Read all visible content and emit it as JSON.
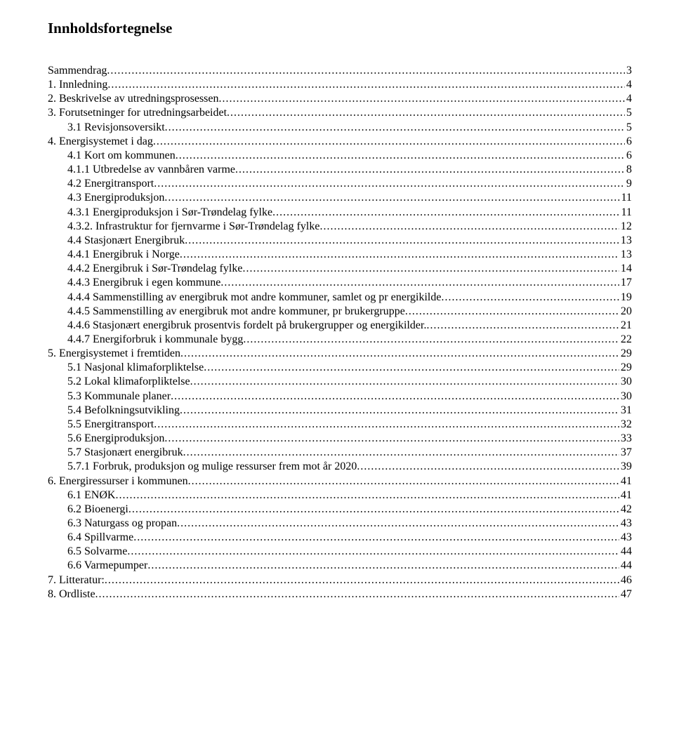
{
  "title": "Innholdsfortegnelse",
  "colors": {
    "text": "#000000",
    "background": "#ffffff"
  },
  "typography": {
    "font_family": "Times New Roman",
    "title_fontsize_pt": 16,
    "title_weight": "bold",
    "entry_fontsize_pt": 12,
    "line_height": 1.26
  },
  "toc_entries": [
    {
      "indent": 0,
      "label": "Sammendrag",
      "page": "3"
    },
    {
      "indent": 0,
      "label": "1.    Innledning",
      "page": "4"
    },
    {
      "indent": 0,
      "label": "2.    Beskrivelse av utredningsprosessen",
      "page": "4"
    },
    {
      "indent": 0,
      "label": "3.    Forutsetninger for utredningsarbeidet",
      "page": "5"
    },
    {
      "indent": 1,
      "label": "3.1    Revisjonsoversikt",
      "page": "5"
    },
    {
      "indent": 0,
      "label": "4.    Energisystemet i dag",
      "page": "6"
    },
    {
      "indent": 1,
      "label": "4.1    Kort om kommunen",
      "page": "6"
    },
    {
      "indent": 2,
      "label": "4.1.1    Utbredelse av vannbåren varme",
      "page": "8"
    },
    {
      "indent": 1,
      "label": "4.2    Energitransport",
      "page": "9"
    },
    {
      "indent": 1,
      "label": "4.3    Energiproduksjon",
      "page": "11"
    },
    {
      "indent": 2,
      "label": "4.3.1    Energiproduksjon i Sør-Trøndelag fylke",
      "page": "11"
    },
    {
      "indent": 2,
      "label": "4.3.2.   Infrastruktur for fjernvarme i Sør-Trøndelag fylke",
      "page": "12"
    },
    {
      "indent": 1,
      "label": "4.4    Stasjonært Energibruk",
      "page": "13"
    },
    {
      "indent": 2,
      "label": "4.4.1    Energibruk i Norge",
      "page": "13"
    },
    {
      "indent": 2,
      "label": "4.4.2    Energibruk i Sør-Trøndelag fylke",
      "page": "14"
    },
    {
      "indent": 2,
      "label": "4.4.3    Energibruk i egen kommune",
      "page": "17"
    },
    {
      "indent": 2,
      "label": "4.4.4    Sammenstilling av energibruk mot andre kommuner, samlet og pr energikilde",
      "page": "19"
    },
    {
      "indent": 2,
      "label": "4.4.5    Sammenstilling av energibruk mot andre kommuner, pr brukergruppe",
      "page": "20"
    },
    {
      "indent": 2,
      "label": "4.4.6    Stasjonært energibruk prosentvis fordelt på brukergrupper og energikilder.",
      "page": "21"
    },
    {
      "indent": 2,
      "label": "4.4.7    Energiforbruk i kommunale bygg",
      "page": "22"
    },
    {
      "indent": 0,
      "label": "5.    Energisystemet i fremtiden",
      "page": "29"
    },
    {
      "indent": 1,
      "label": "5.1    Nasjonal klimaforpliktelse",
      "page": "29"
    },
    {
      "indent": 1,
      "label": "5.2    Lokal klimaforpliktelse",
      "page": "30"
    },
    {
      "indent": 1,
      "label": "5.3    Kommunale planer",
      "page": "30"
    },
    {
      "indent": 1,
      "label": "5.4    Befolkningsutvikling",
      "page": "31"
    },
    {
      "indent": 1,
      "label": "5.5    Energitransport",
      "page": "32"
    },
    {
      "indent": 1,
      "label": "5.6    Energiproduksjon",
      "page": "33"
    },
    {
      "indent": 1,
      "label": "5.7    Stasjonært energibruk",
      "page": "37"
    },
    {
      "indent": 2,
      "label": "5.7.1    Forbruk, produksjon og mulige ressurser frem mot år 2020",
      "page": "39"
    },
    {
      "indent": 0,
      "label": "6.    Energiressurser i kommunen",
      "page": "41"
    },
    {
      "indent": 1,
      "label": "6.1    ENØK",
      "page": "41"
    },
    {
      "indent": 1,
      "label": "6.2    Bioenergi",
      "page": "42"
    },
    {
      "indent": 1,
      "label": "6.3    Naturgass og propan",
      "page": "43"
    },
    {
      "indent": 1,
      "label": "6.4    Spillvarme",
      "page": "43"
    },
    {
      "indent": 1,
      "label": "6.5    Solvarme",
      "page": "44"
    },
    {
      "indent": 1,
      "label": "6.6    Varmepumper",
      "page": "44"
    },
    {
      "indent": 0,
      "label": "7.    Litteratur:",
      "page": "46"
    },
    {
      "indent": 0,
      "label": "8.    Ordliste",
      "page": "47"
    }
  ]
}
